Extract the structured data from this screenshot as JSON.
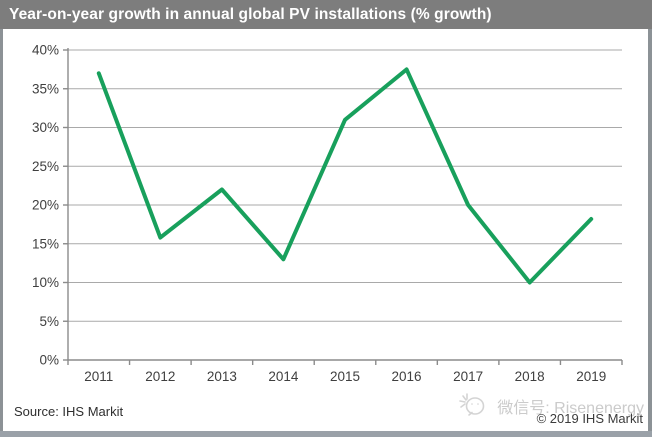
{
  "title_bar": {
    "text": "Year-on-year growth in annual global PV installations (% growth)"
  },
  "chart_data": {
    "type": "line",
    "title": "Year-on-year growth in annual global PV installations (% growth)",
    "categories": [
      "2011",
      "2012",
      "2013",
      "2014",
      "2015",
      "2016",
      "2017",
      "2018",
      "2019"
    ],
    "series": [
      {
        "name": "Year-on-year growth of annual global PV installations",
        "values": [
          37,
          15.8,
          22,
          13,
          31,
          37.5,
          20,
          10,
          18.2
        ]
      }
    ],
    "xlabel": "",
    "ylabel": "",
    "ylim": [
      0,
      40
    ],
    "yticks": [
      0,
      5,
      10,
      15,
      20,
      25,
      30,
      35,
      40
    ],
    "ytick_labels": [
      "0%",
      "5%",
      "10%",
      "15%",
      "20%",
      "25%",
      "30%",
      "35%",
      "40%"
    ],
    "grid": true,
    "legend_position": "none",
    "line_color": "#18a05c"
  },
  "footer": {
    "source": "Source: IHS Markit",
    "copyright": "© 2019 IHS Markit"
  },
  "watermark": {
    "icon": "wechat-icon",
    "text": "微信号: Risenenergy"
  },
  "colors": {
    "title_bar_bg": "#7d7d7d",
    "title_text": "#ffffff",
    "line": "#18a05c",
    "grid": "#a9a9a9",
    "axis": "#8b8b8b",
    "tick_text": "#3f3f3f",
    "frame": "#8c9296",
    "bottom_strip": "#9aa1a8",
    "watermark_text": "#cbcbcb",
    "source_text": "#2f2f2f"
  }
}
